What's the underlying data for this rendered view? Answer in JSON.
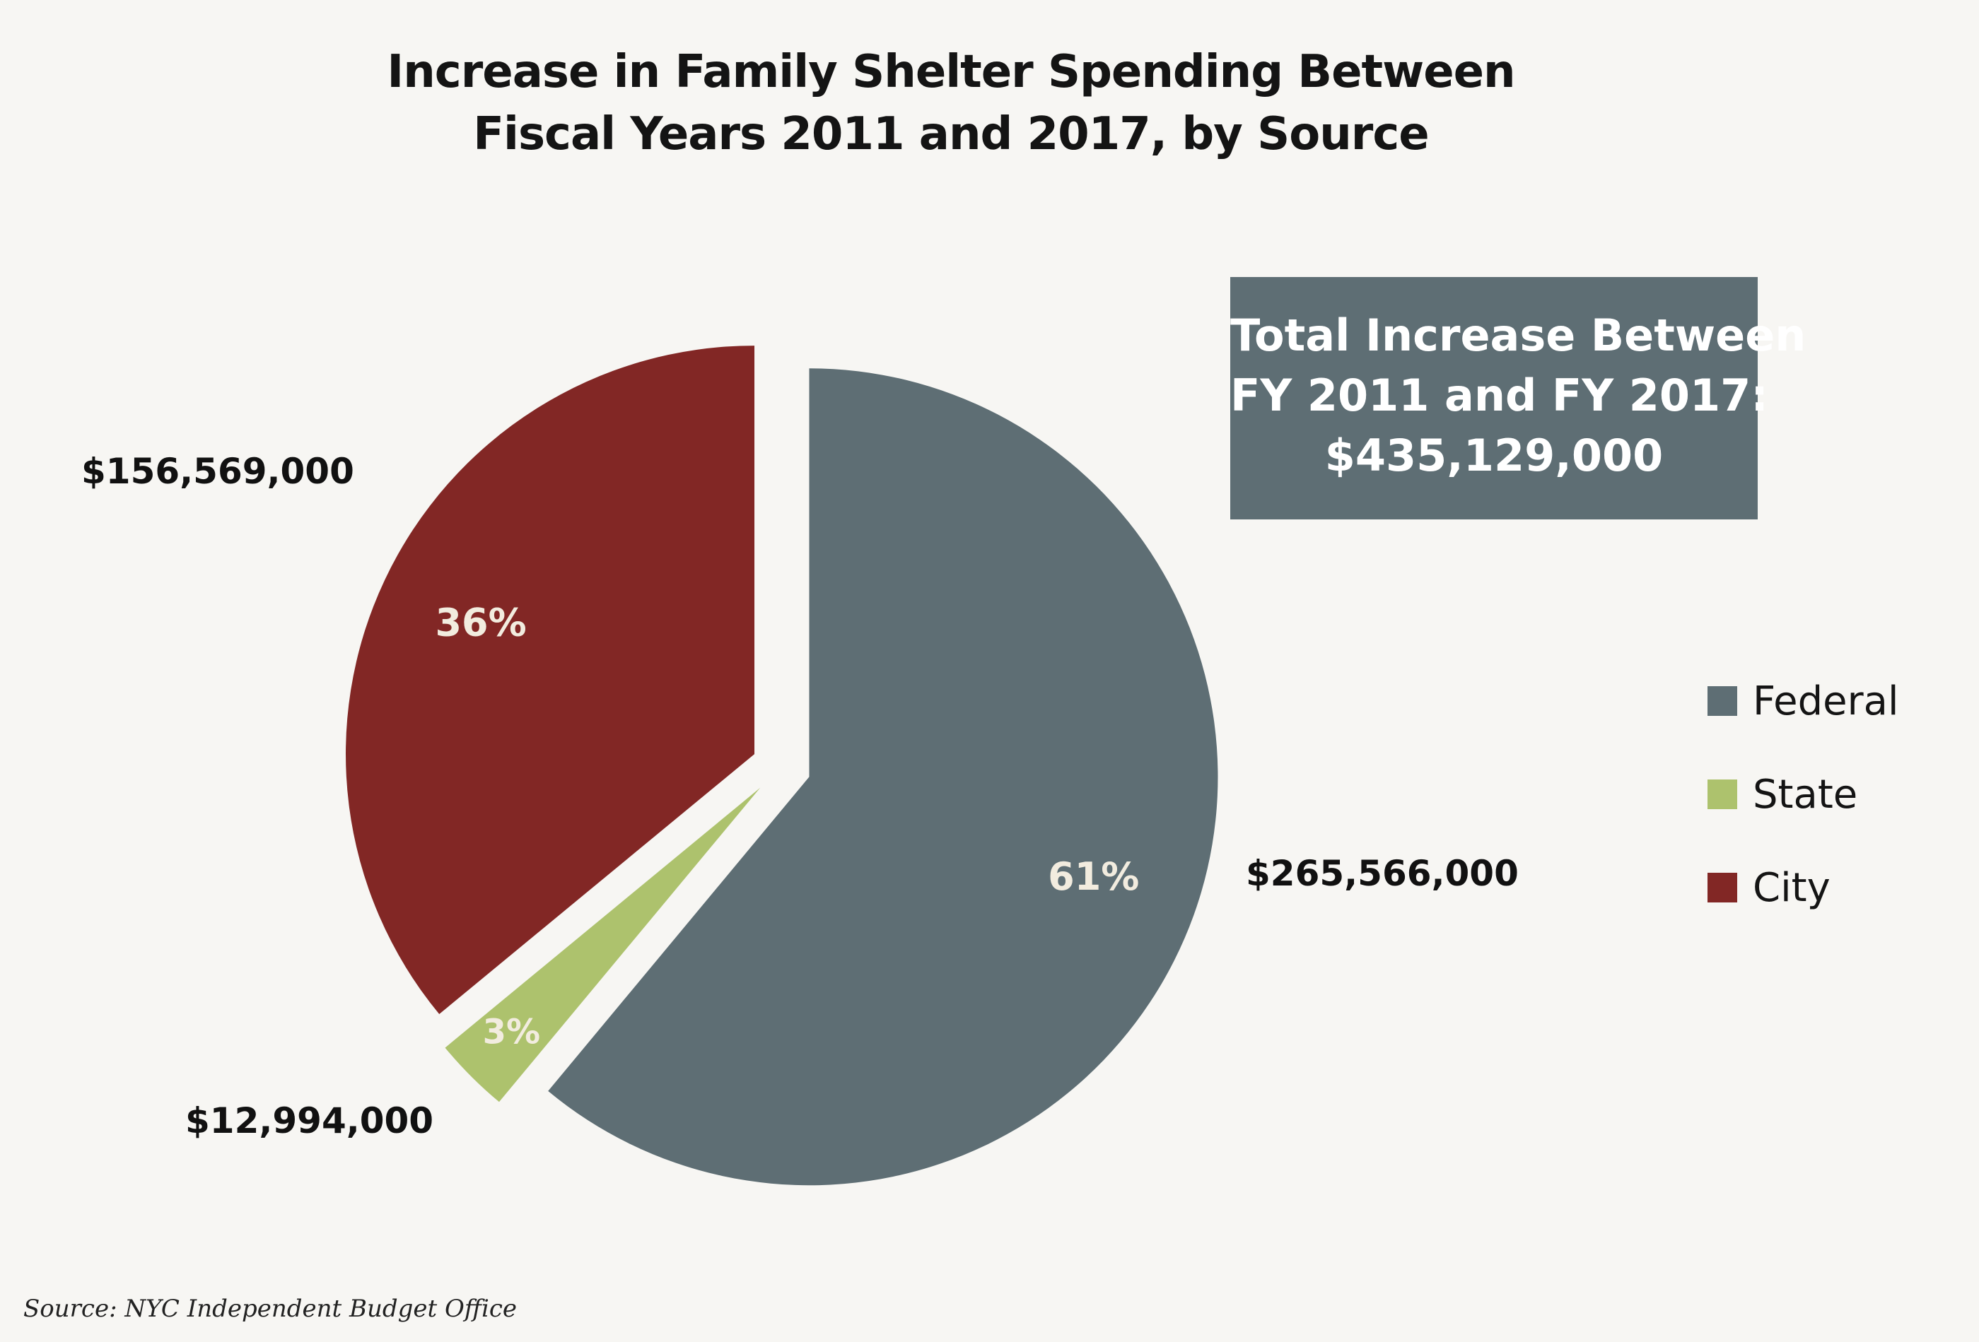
{
  "chart_data": {
    "type": "pie",
    "title": "Increase in Family Shelter Spending Between Fiscal Years 2011 and 2017, by Source",
    "title_lines": [
      "Increase in Family Shelter Spending Between",
      "Fiscal Years 2011 and 2017, by Source"
    ],
    "categories": [
      "Federal",
      "State",
      "City"
    ],
    "values": [
      265566000,
      12994000,
      156569000
    ],
    "percent_labels": [
      "61%",
      "3%",
      "36%"
    ],
    "value_labels": [
      "$265,566,000",
      "$12,994,000",
      "$156,569,000"
    ],
    "colors": [
      "#5e6e74",
      "#adc26d",
      "#822725"
    ],
    "legend_position": "right",
    "exploded": true
  },
  "total_box": {
    "lines": [
      "Total Increase Between",
      "FY 2011 and  FY 2017:",
      "$435,129,000"
    ]
  },
  "source": "Source:  NYC Independent Budget Office"
}
